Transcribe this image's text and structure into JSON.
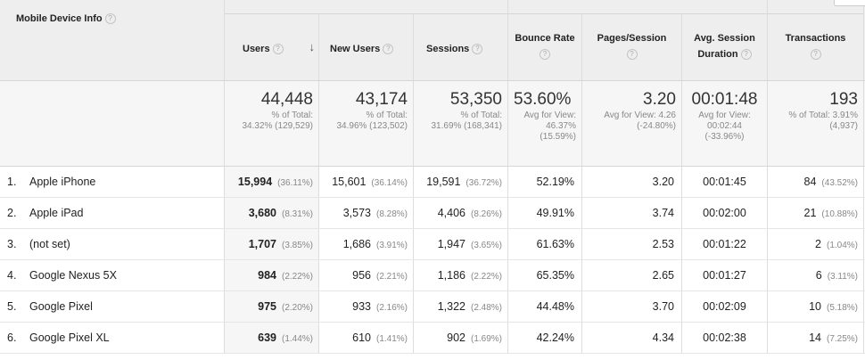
{
  "header": {
    "dimension": "Mobile Device Info",
    "help": "?",
    "columns": {
      "users": "Users",
      "new_users": "New Users",
      "sessions": "Sessions",
      "bounce_rate": "Bounce Rate",
      "pages_session": "Pages/Session",
      "avg_session_l1": "Avg. Session",
      "avg_session_l2": "Duration",
      "transactions": "Transactions"
    },
    "sort_arrow": "↓"
  },
  "totals": {
    "users": {
      "value": "44,448",
      "l1": "% of Total:",
      "l2": "34.32% (129,529)"
    },
    "new_users": {
      "value": "43,174",
      "l1": "% of Total:",
      "l2": "34.96% (123,502)"
    },
    "sessions": {
      "value": "53,350",
      "l1": "% of Total:",
      "l2": "31.69% (168,341)"
    },
    "bounce_rate": {
      "value": "53.60%",
      "l1": "Avg for View:",
      "l2": "46.37%",
      "l3": "(15.59%)"
    },
    "pages_session": {
      "value": "3.20",
      "l1": "Avg for View: 4.26",
      "l2": "(-24.80%)"
    },
    "avg_session": {
      "value": "00:01:48",
      "l1": "Avg for View:",
      "l2": "00:02:44",
      "l3": "(-33.96%)"
    },
    "transactions": {
      "value": "193",
      "l1": "% of Total: 3.91%",
      "l2": "(4,937)"
    }
  },
  "rows": [
    {
      "idx": "1.",
      "device": "Apple iPhone",
      "users": "15,994",
      "users_pct": "(36.11%)",
      "new": "15,601",
      "new_pct": "(36.14%)",
      "sess": "19,591",
      "sess_pct": "(36.72%)",
      "br": "52.19%",
      "pps": "3.20",
      "asd": "00:01:45",
      "tx": "84",
      "tx_pct": "(43.52%)"
    },
    {
      "idx": "2.",
      "device": "Apple iPad",
      "users": "3,680",
      "users_pct": "(8.31%)",
      "new": "3,573",
      "new_pct": "(8.28%)",
      "sess": "4,406",
      "sess_pct": "(8.26%)",
      "br": "49.91%",
      "pps": "3.74",
      "asd": "00:02:00",
      "tx": "21",
      "tx_pct": "(10.88%)"
    },
    {
      "idx": "3.",
      "device": "(not set)",
      "users": "1,707",
      "users_pct": "(3.85%)",
      "new": "1,686",
      "new_pct": "(3.91%)",
      "sess": "1,947",
      "sess_pct": "(3.65%)",
      "br": "61.63%",
      "pps": "2.53",
      "asd": "00:01:22",
      "tx": "2",
      "tx_pct": "(1.04%)"
    },
    {
      "idx": "4.",
      "device": "Google Nexus 5X",
      "users": "984",
      "users_pct": "(2.22%)",
      "new": "956",
      "new_pct": "(2.21%)",
      "sess": "1,186",
      "sess_pct": "(2.22%)",
      "br": "65.35%",
      "pps": "2.65",
      "asd": "00:01:27",
      "tx": "6",
      "tx_pct": "(3.11%)"
    },
    {
      "idx": "5.",
      "device": "Google Pixel",
      "users": "975",
      "users_pct": "(2.20%)",
      "new": "933",
      "new_pct": "(2.16%)",
      "sess": "1,322",
      "sess_pct": "(2.48%)",
      "br": "44.48%",
      "pps": "3.70",
      "asd": "00:02:09",
      "tx": "10",
      "tx_pct": "(5.18%)"
    },
    {
      "idx": "6.",
      "device": "Google Pixel XL",
      "users": "639",
      "users_pct": "(1.44%)",
      "new": "610",
      "new_pct": "(1.41%)",
      "sess": "902",
      "sess_pct": "(1.69%)",
      "br": "42.24%",
      "pps": "4.34",
      "asd": "00:02:38",
      "tx": "14",
      "tx_pct": "(7.25%)"
    }
  ]
}
